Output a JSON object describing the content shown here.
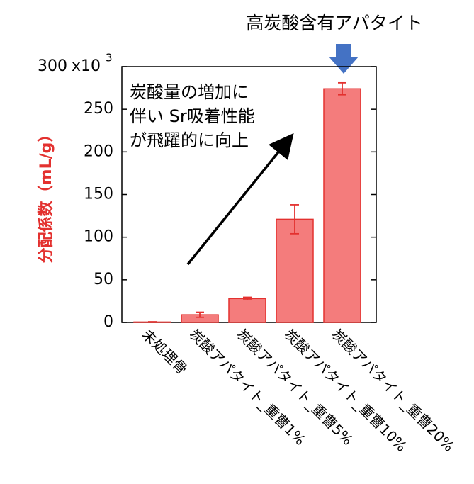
{
  "chart_data": {
    "type": "bar",
    "header": "高炭酸含有アパタイト",
    "annotation_lines": [
      "炭酸量の増加に",
      "伴い Sr吸着性能",
      "が飛躍的に向上"
    ],
    "y_label": "分配係数（mL/g）",
    "y_scale": {
      "base": "x10",
      "exponent": "3"
    },
    "categories": [
      "未処理骨",
      "炭酸アパタイト_重曹1%",
      "炭酸アパタイト_重曹5%",
      "炭酸アパタイト_重曹10%",
      "炭酸アパタイト_重曹20%"
    ],
    "values": [
      0.5,
      9,
      28,
      121,
      274
    ],
    "errors": [
      0.3,
      3,
      1.5,
      17,
      7
    ],
    "color": "#f47c7c",
    "edge_color": "#e3312f",
    "ylim": [
      0,
      300
    ],
    "yticks": [
      0,
      50,
      100,
      150,
      200,
      250,
      300
    ]
  }
}
